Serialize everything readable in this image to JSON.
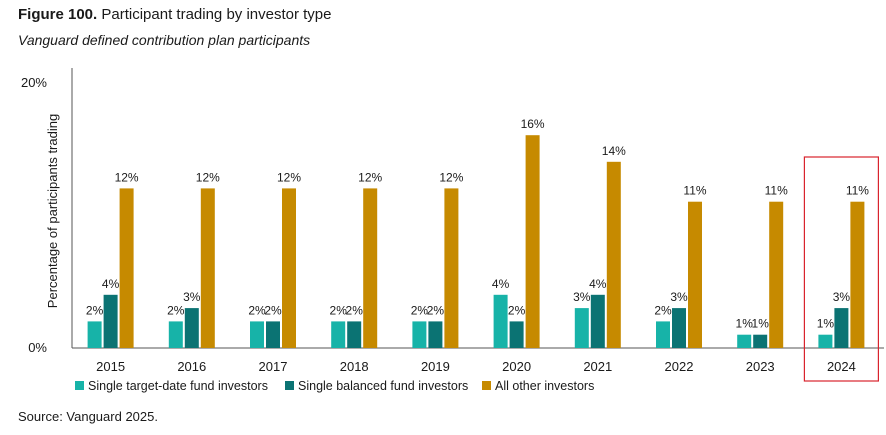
{
  "figure_label": "Figure 100.",
  "title": "Participant trading by investor type",
  "subtitle": "Vanguard defined contribution plan participants",
  "source": "Source: Vanguard 2025.",
  "chart_data": {
    "type": "bar",
    "categories": [
      "2015",
      "2016",
      "2017",
      "2018",
      "2019",
      "2020",
      "2021",
      "2022",
      "2023",
      "2024"
    ],
    "series": [
      {
        "name": "Single target-date fund investors",
        "color": "#17b3a8",
        "values": [
          2,
          2,
          2,
          2,
          2,
          4,
          3,
          2,
          1,
          1
        ],
        "labels": [
          "2%",
          "2%",
          "2%",
          "2%",
          "2%",
          "4%",
          "3%",
          "2%",
          "1%",
          "1%"
        ]
      },
      {
        "name": "Single balanced fund investors",
        "color": "#0b7373",
        "values": [
          4,
          3,
          2,
          2,
          2,
          2,
          4,
          3,
          1,
          3
        ],
        "labels": [
          "4%",
          "3%",
          "2%",
          "2%",
          "2%",
          "2%",
          "4%",
          "3%",
          "1%",
          "3%"
        ]
      },
      {
        "name": "All other investors",
        "color": "#c68a00",
        "values": [
          12,
          12,
          12,
          12,
          12,
          16,
          14,
          11,
          11,
          11
        ],
        "labels": [
          "12%",
          "12%",
          "12%",
          "12%",
          "12%",
          "16%",
          "14%",
          "11%",
          "11%",
          "11%"
        ]
      }
    ],
    "ylabel": "Percentage of participants trading",
    "ylim": [
      0,
      20
    ],
    "yticks": [
      "0%",
      "20%"
    ],
    "legend_position": "bottom-left",
    "highlighted_category": "2024",
    "highlight_color": "#d9232d"
  }
}
